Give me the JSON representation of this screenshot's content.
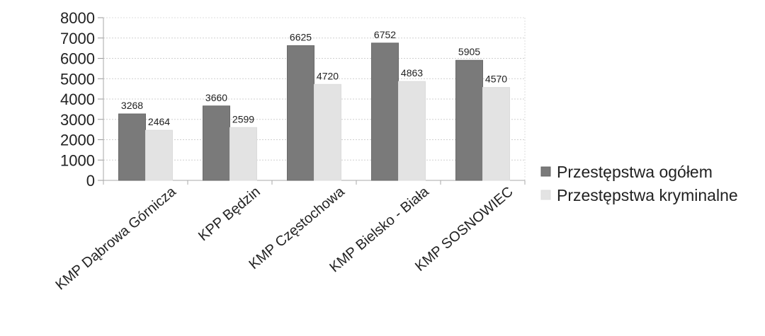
{
  "chart_data": {
    "type": "bar",
    "categories": [
      "KMP Dąbrowa Górnicza",
      "KPP Będzin",
      "KMP Częstochowa",
      "KMP Bielsko - Biała",
      "KMP SOSNOWIEC"
    ],
    "series": [
      {
        "name": "Przestępstwa ogółem",
        "values": [
          3268,
          3660,
          6625,
          6752,
          5905
        ],
        "color": "#7a7a7a"
      },
      {
        "name": "Przestępstwa kryminalne",
        "values": [
          2464,
          2599,
          4720,
          4863,
          4570
        ],
        "color": "#e3e3e3"
      }
    ],
    "y_ticks": [
      "0",
      "1000",
      "2000",
      "3000",
      "4000",
      "5000",
      "6000",
      "7000",
      "8000"
    ],
    "ylim": [
      0,
      8000
    ],
    "grid": true,
    "legend_position": "right",
    "data_labels": true
  }
}
